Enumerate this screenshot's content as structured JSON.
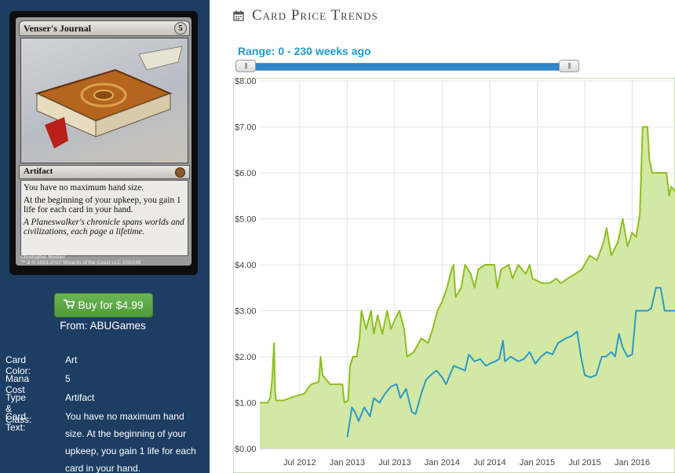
{
  "card": {
    "name": "Venser's Journal",
    "mana_symbol": "5",
    "type_line": "Artifact",
    "rules_lines": [
      "You have no maximum hand size.",
      "At the beginning of your upkeep, you gain 1 life for each card in your hand."
    ],
    "flavor": "A Planeswalker's chronicle spans worlds and civilizations, each page a lifetime.",
    "artist": "Christopher Moeller",
    "copyright": "™ & © 1993-2010 Wizards of the Coast LLC 220/249"
  },
  "buy": {
    "label": "Buy for $4.99",
    "icon": "shopping-cart-icon"
  },
  "from_line": "From: ABUGames",
  "info": [
    {
      "label": "Card Color:",
      "value": "Art"
    },
    {
      "label": "Mana Cost",
      "value": "5"
    },
    {
      "label": "Type & Class:",
      "value": "Artifact"
    },
    {
      "label": "Card Text:",
      "value": "You have no maximum hand size. At the beginning of your upkeep, you gain 1 life for each card in your hand."
    }
  ],
  "page": {
    "title": "Card Price Trends",
    "icon": "calendar-icon"
  },
  "range": {
    "label": "Range: 0 - 230 weeks ago",
    "handle_glyph": "|||"
  },
  "colors": {
    "sidebar": "#1d3d63",
    "green": "#8dbf1f",
    "blue": "#2a9bc6",
    "fill": "#cfe59b",
    "accent": "#1f9bd0"
  },
  "chart_data": {
    "type": "line",
    "y_ticks": [
      "$0.00",
      "$1.00",
      "$2.00",
      "$3.00",
      "$4.00",
      "$5.00",
      "$6.00",
      "$7.00",
      "$8.00"
    ],
    "ylim": [
      0,
      8
    ],
    "x_ticks": [
      "Jul 2012",
      "Jan 2013",
      "Jul 2013",
      "Jan 2014",
      "Jul 2014",
      "Jan 2015",
      "Jul 2015",
      "Jan 2016"
    ],
    "x_tick_times": [
      2012.5,
      2013.0,
      2013.5,
      2014.0,
      2014.5,
      2015.0,
      2015.5,
      2016.0
    ],
    "xlim": [
      2012.08,
      2016.45
    ],
    "grid": true,
    "series": [
      {
        "color": "#8dbf1f",
        "filled": true,
        "points": [
          [
            2012.08,
            1.0
          ],
          [
            2012.16,
            1.0
          ],
          [
            2012.19,
            1.1
          ],
          [
            2012.21,
            1.5
          ],
          [
            2012.23,
            2.3
          ],
          [
            2012.24,
            1.3
          ],
          [
            2012.25,
            1.05
          ],
          [
            2012.33,
            1.05
          ],
          [
            2012.4,
            1.1
          ],
          [
            2012.47,
            1.15
          ],
          [
            2012.55,
            1.2
          ],
          [
            2012.62,
            1.4
          ],
          [
            2012.7,
            1.45
          ],
          [
            2012.72,
            2.0
          ],
          [
            2012.74,
            1.6
          ],
          [
            2012.78,
            1.5
          ],
          [
            2012.82,
            1.4
          ],
          [
            2012.86,
            1.4
          ],
          [
            2012.95,
            1.4
          ],
          [
            2012.97,
            1.0
          ],
          [
            2013.01,
            1.05
          ],
          [
            2013.03,
            1.8
          ],
          [
            2013.06,
            2.0
          ],
          [
            2013.1,
            2.0
          ],
          [
            2013.13,
            2.4
          ],
          [
            2013.15,
            3.0
          ],
          [
            2013.2,
            2.6
          ],
          [
            2013.25,
            3.0
          ],
          [
            2013.28,
            2.5
          ],
          [
            2013.32,
            2.9
          ],
          [
            2013.37,
            2.5
          ],
          [
            2013.42,
            3.0
          ],
          [
            2013.46,
            2.6
          ],
          [
            2013.5,
            2.8
          ],
          [
            2013.55,
            3.0
          ],
          [
            2013.6,
            2.6
          ],
          [
            2013.63,
            2.0
          ],
          [
            2013.7,
            2.1
          ],
          [
            2013.78,
            2.4
          ],
          [
            2013.85,
            2.3
          ],
          [
            2013.9,
            2.6
          ],
          [
            2013.95,
            3.0
          ],
          [
            2014.0,
            3.2
          ],
          [
            2014.05,
            3.5
          ],
          [
            2014.1,
            3.9
          ],
          [
            2014.12,
            4.0
          ],
          [
            2014.14,
            3.3
          ],
          [
            2014.2,
            3.5
          ],
          [
            2014.24,
            4.0
          ],
          [
            2014.3,
            3.8
          ],
          [
            2014.34,
            3.5
          ],
          [
            2014.38,
            3.9
          ],
          [
            2014.45,
            4.0
          ],
          [
            2014.55,
            4.0
          ],
          [
            2014.58,
            3.5
          ],
          [
            2014.62,
            3.9
          ],
          [
            2014.7,
            4.0
          ],
          [
            2014.74,
            3.7
          ],
          [
            2014.8,
            4.0
          ],
          [
            2014.88,
            3.8
          ],
          [
            2014.92,
            4.0
          ],
          [
            2014.95,
            3.7
          ],
          [
            2015.05,
            3.6
          ],
          [
            2015.13,
            3.6
          ],
          [
            2015.2,
            3.7
          ],
          [
            2015.25,
            3.6
          ],
          [
            2015.32,
            3.7
          ],
          [
            2015.4,
            3.8
          ],
          [
            2015.47,
            3.9
          ],
          [
            2015.55,
            4.2
          ],
          [
            2015.63,
            4.1
          ],
          [
            2015.7,
            4.5
          ],
          [
            2015.73,
            4.8
          ],
          [
            2015.78,
            4.2
          ],
          [
            2015.85,
            4.5
          ],
          [
            2015.9,
            5.0
          ],
          [
            2015.95,
            4.4
          ],
          [
            2016.0,
            4.7
          ],
          [
            2016.04,
            4.6
          ],
          [
            2016.08,
            5.1
          ],
          [
            2016.11,
            7.0
          ],
          [
            2016.16,
            7.0
          ],
          [
            2016.18,
            6.3
          ],
          [
            2016.21,
            6.0
          ],
          [
            2016.36,
            6.0
          ],
          [
            2016.39,
            5.5
          ],
          [
            2016.41,
            5.7
          ],
          [
            2016.45,
            5.6
          ]
        ]
      },
      {
        "color": "#2a9bc6",
        "filled": false,
        "points": [
          [
            2013.0,
            0.25
          ],
          [
            2013.02,
            0.5
          ],
          [
            2013.05,
            0.9
          ],
          [
            2013.08,
            0.8
          ],
          [
            2013.12,
            0.6
          ],
          [
            2013.18,
            0.9
          ],
          [
            2013.24,
            0.7
          ],
          [
            2013.28,
            1.1
          ],
          [
            2013.34,
            1.0
          ],
          [
            2013.4,
            1.2
          ],
          [
            2013.46,
            1.35
          ],
          [
            2013.52,
            1.4
          ],
          [
            2013.56,
            1.1
          ],
          [
            2013.62,
            1.3
          ],
          [
            2013.68,
            0.8
          ],
          [
            2013.72,
            0.75
          ],
          [
            2013.78,
            1.2
          ],
          [
            2013.83,
            1.5
          ],
          [
            2013.88,
            1.6
          ],
          [
            2013.94,
            1.7
          ],
          [
            2014.0,
            1.55
          ],
          [
            2014.04,
            1.4
          ],
          [
            2014.08,
            1.6
          ],
          [
            2014.12,
            1.8
          ],
          [
            2014.18,
            1.75
          ],
          [
            2014.24,
            1.7
          ],
          [
            2014.28,
            2.05
          ],
          [
            2014.34,
            1.9
          ],
          [
            2014.4,
            1.95
          ],
          [
            2014.46,
            1.8
          ],
          [
            2014.5,
            1.85
          ],
          [
            2014.56,
            1.9
          ],
          [
            2014.6,
            1.95
          ],
          [
            2014.64,
            2.35
          ],
          [
            2014.66,
            1.9
          ],
          [
            2014.72,
            2.0
          ],
          [
            2014.8,
            1.9
          ],
          [
            2014.86,
            1.95
          ],
          [
            2014.92,
            2.1
          ],
          [
            2014.98,
            1.85
          ],
          [
            2015.04,
            2.0
          ],
          [
            2015.1,
            2.1
          ],
          [
            2015.16,
            2.05
          ],
          [
            2015.22,
            2.3
          ],
          [
            2015.3,
            2.4
          ],
          [
            2015.36,
            2.45
          ],
          [
            2015.42,
            2.55
          ],
          [
            2015.46,
            2.0
          ],
          [
            2015.5,
            1.6
          ],
          [
            2015.56,
            1.55
          ],
          [
            2015.62,
            1.6
          ],
          [
            2015.68,
            2.0
          ],
          [
            2015.72,
            2.0
          ],
          [
            2015.78,
            2.1
          ],
          [
            2015.82,
            2.0
          ],
          [
            2015.86,
            2.5
          ],
          [
            2015.9,
            2.2
          ],
          [
            2015.95,
            2.0
          ],
          [
            2016.0,
            2.05
          ],
          [
            2016.04,
            3.0
          ],
          [
            2016.1,
            3.0
          ],
          [
            2016.16,
            3.0
          ],
          [
            2016.2,
            3.05
          ],
          [
            2016.25,
            3.5
          ],
          [
            2016.3,
            3.5
          ],
          [
            2016.34,
            3.0
          ],
          [
            2016.45,
            3.0
          ]
        ]
      }
    ]
  }
}
